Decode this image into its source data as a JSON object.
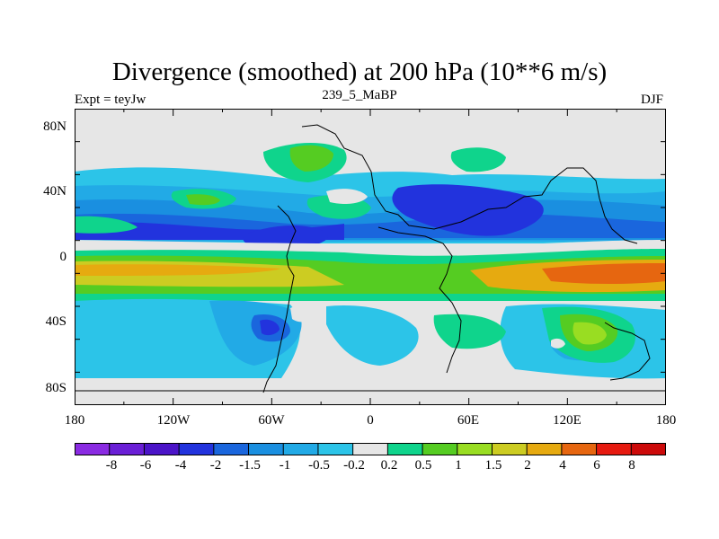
{
  "header": {
    "title": "Divergence (smoothed) at 200 hPa (10**6 m/s)",
    "experiment": "Expt = teyJw",
    "run": "239_5_MaBP",
    "season": "DJF"
  },
  "map_axes": {
    "y_ticks": [
      "80N",
      "40N",
      "0",
      "40S",
      "80S"
    ],
    "x_ticks": [
      "180",
      "120W",
      "60W",
      "0",
      "60E",
      "120E",
      "180"
    ]
  },
  "colorbar": {
    "labels": [
      "-8",
      "-6",
      "-4",
      "-2",
      "-1.5",
      "-1",
      "-0.5",
      "-0.2",
      "0.2",
      "0.5",
      "1",
      "1.5",
      "2",
      "4",
      "6",
      "8"
    ],
    "colors": [
      "#8a2be2",
      "#6a1fd6",
      "#4b14c8",
      "#2233dd",
      "#1a66dd",
      "#1a8fe0",
      "#22aae6",
      "#2cc4e8",
      "#e6e6e6",
      "#0fd48c",
      "#55cc22",
      "#99dd22",
      "#cccc22",
      "#e6aa10",
      "#e66610",
      "#e61a10",
      "#cc0a0a"
    ]
  },
  "colors": {
    "neutral": "#e6e6e6",
    "coast": "#000000"
  }
}
